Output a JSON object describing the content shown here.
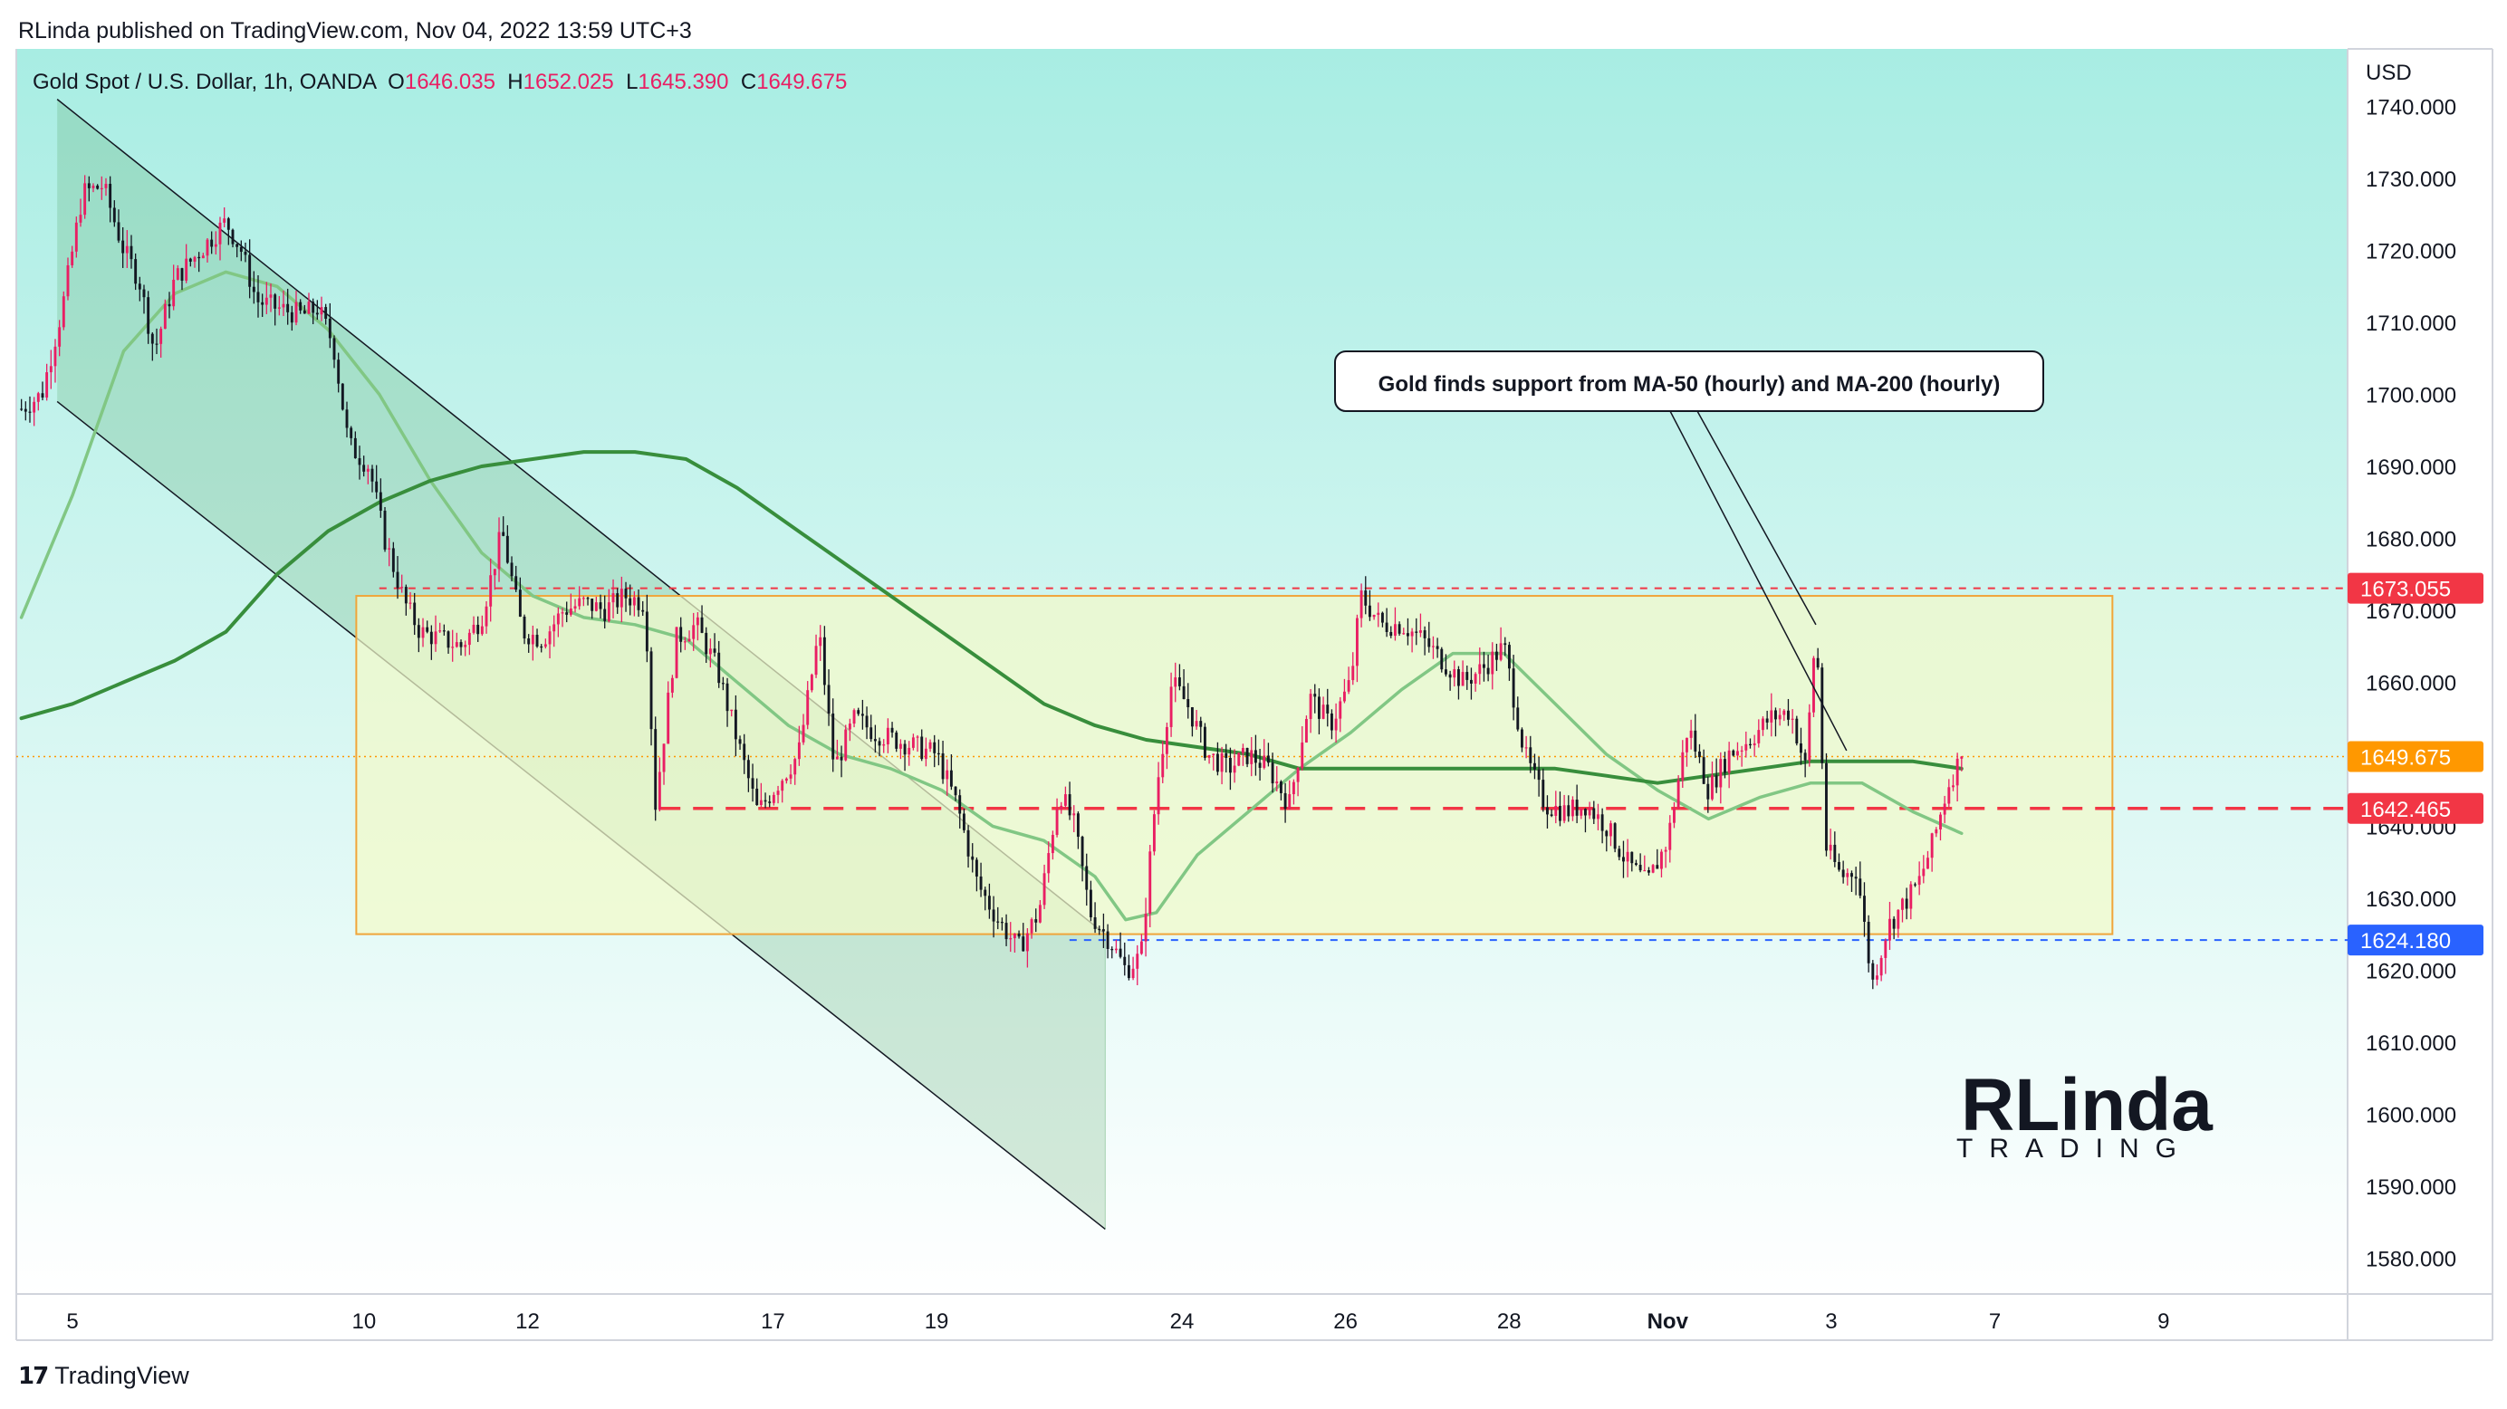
{
  "header": {
    "published": "RLinda published on TradingView.com, Nov 04, 2022 13:59 UTC+3"
  },
  "legend": {
    "symbol": "Gold Spot / U.S. Dollar, 1h, OANDA",
    "o_label": "O",
    "o_value": "1646.035",
    "h_label": "H",
    "h_value": "1652.025",
    "l_label": "L",
    "l_value": "1645.390",
    "c_label": "C",
    "c_value": "1649.675"
  },
  "footer": {
    "brand": "TradingView"
  },
  "watermark": {
    "line1": "RLinda",
    "line2": "TRADING"
  },
  "colors": {
    "bull": "#e91e63",
    "bear": "#131722",
    "ma50": "#81c784",
    "ma200": "#388e3c",
    "red_level": "#f23645",
    "blue_level": "#2962ff",
    "current": "#ff9800",
    "range_box_fill": "#f2f9c9",
    "range_box_border": "#f0a53a",
    "bg_top": "#a8ede3",
    "bg_bottom": "#ffffff"
  },
  "chart_data": {
    "type": "candlestick",
    "title": "Gold Spot / U.S. Dollar, 1h, OANDA",
    "currency_label": "USD",
    "ylim": [
      1575,
      1748
    ],
    "y_ticks": [
      1580,
      1590,
      1600,
      1610,
      1620,
      1630,
      1640,
      1650,
      1660,
      1670,
      1680,
      1690,
      1700,
      1710,
      1720,
      1730,
      1740
    ],
    "y_tick_labels": [
      "1580.000",
      "1590.000",
      "1600.000",
      "1610.000",
      "1620.000",
      "1630.000",
      "1640.000",
      "1650.000",
      "1660.000",
      "1670.000",
      "1680.000",
      "1690.000",
      "1700.000",
      "1710.000",
      "1720.000",
      "1730.000",
      "1740.000"
    ],
    "x_ticks": [
      {
        "label": "5",
        "t": 1.0
      },
      {
        "label": "10",
        "t": 6.7
      },
      {
        "label": "12",
        "t": 9.9
      },
      {
        "label": "17",
        "t": 14.7
      },
      {
        "label": "19",
        "t": 17.9
      },
      {
        "label": "24",
        "t": 22.7
      },
      {
        "label": "26",
        "t": 25.9
      },
      {
        "label": "28",
        "t": 29.1
      },
      {
        "label": "Nov",
        "t": 32.2
      },
      {
        "label": "3",
        "t": 35.4
      },
      {
        "label": "7",
        "t": 38.6
      },
      {
        "label": "9",
        "t": 41.9
      }
    ],
    "price_path": [
      [
        0.0,
        1698
      ],
      [
        0.4,
        1700
      ],
      [
        0.8,
        1712
      ],
      [
        1.2,
        1728
      ],
      [
        1.6,
        1729
      ],
      [
        2.0,
        1720
      ],
      [
        2.3,
        1716
      ],
      [
        2.6,
        1706
      ],
      [
        3.0,
        1716
      ],
      [
        3.5,
        1720
      ],
      [
        4.0,
        1724
      ],
      [
        4.3,
        1720
      ],
      [
        4.6,
        1713
      ],
      [
        5.0,
        1712
      ],
      [
        5.5,
        1711
      ],
      [
        5.8,
        1712
      ],
      [
        6.1,
        1707
      ],
      [
        6.4,
        1693
      ],
      [
        6.8,
        1690
      ],
      [
        7.1,
        1680
      ],
      [
        7.5,
        1671
      ],
      [
        7.8,
        1667
      ],
      [
        8.2,
        1666
      ],
      [
        8.6,
        1665
      ],
      [
        9.0,
        1669
      ],
      [
        9.4,
        1681
      ],
      [
        9.8,
        1667
      ],
      [
        10.2,
        1666
      ],
      [
        10.6,
        1670
      ],
      [
        11.0,
        1671
      ],
      [
        11.4,
        1670
      ],
      [
        11.8,
        1672
      ],
      [
        12.2,
        1671
      ],
      [
        12.4,
        1643
      ],
      [
        12.8,
        1666
      ],
      [
        13.2,
        1668
      ],
      [
        13.6,
        1662
      ],
      [
        14.0,
        1652
      ],
      [
        14.4,
        1642
      ],
      [
        14.8,
        1646
      ],
      [
        15.2,
        1650
      ],
      [
        15.6,
        1667
      ],
      [
        15.9,
        1648
      ],
      [
        16.3,
        1655
      ],
      [
        16.7,
        1653
      ],
      [
        17.1,
        1652
      ],
      [
        17.5,
        1651
      ],
      [
        17.9,
        1650
      ],
      [
        18.3,
        1643
      ],
      [
        18.7,
        1632
      ],
      [
        19.1,
        1627
      ],
      [
        19.5,
        1623
      ],
      [
        19.9,
        1628
      ],
      [
        20.3,
        1645
      ],
      [
        20.6,
        1640
      ],
      [
        20.9,
        1628
      ],
      [
        21.3,
        1624
      ],
      [
        21.6,
        1620
      ],
      [
        21.9,
        1622
      ],
      [
        22.2,
        1645
      ],
      [
        22.5,
        1660
      ],
      [
        22.8,
        1657
      ],
      [
        23.2,
        1650
      ],
      [
        23.6,
        1648
      ],
      [
        24.0,
        1650
      ],
      [
        24.4,
        1648
      ],
      [
        24.8,
        1643
      ],
      [
        25.2,
        1658
      ],
      [
        25.6,
        1654
      ],
      [
        26.0,
        1660
      ],
      [
        26.2,
        1672
      ],
      [
        26.6,
        1668
      ],
      [
        27.0,
        1668
      ],
      [
        27.4,
        1666
      ],
      [
        27.8,
        1663
      ],
      [
        28.2,
        1660
      ],
      [
        28.6,
        1662
      ],
      [
        29.0,
        1665
      ],
      [
        29.4,
        1650
      ],
      [
        29.8,
        1643
      ],
      [
        30.2,
        1642
      ],
      [
        30.6,
        1643
      ],
      [
        31.0,
        1640
      ],
      [
        31.4,
        1635
      ],
      [
        31.8,
        1632
      ],
      [
        32.2,
        1638
      ],
      [
        32.6,
        1654
      ],
      [
        33.0,
        1645
      ],
      [
        33.4,
        1650
      ],
      [
        33.8,
        1652
      ],
      [
        34.2,
        1655
      ],
      [
        34.6,
        1656
      ],
      [
        34.9,
        1648
      ],
      [
        35.1,
        1668
      ],
      [
        35.3,
        1637
      ],
      [
        35.6,
        1633
      ],
      [
        35.9,
        1634
      ],
      [
        36.2,
        1618
      ],
      [
        36.5,
        1626
      ],
      [
        36.8,
        1629
      ],
      [
        37.1,
        1632
      ],
      [
        37.4,
        1638
      ],
      [
        37.7,
        1646
      ],
      [
        37.95,
        1649.675
      ]
    ],
    "series": [
      {
        "name": "MA-50 (hourly)",
        "values": [
          [
            0.0,
            1669
          ],
          [
            1.0,
            1686
          ],
          [
            2.0,
            1706
          ],
          [
            3.0,
            1714
          ],
          [
            4.0,
            1717
          ],
          [
            5.0,
            1715
          ],
          [
            6.0,
            1709
          ],
          [
            7.0,
            1700
          ],
          [
            8.0,
            1688
          ],
          [
            9.0,
            1678
          ],
          [
            10.0,
            1672
          ],
          [
            11.0,
            1669
          ],
          [
            12.0,
            1668
          ],
          [
            13.0,
            1666
          ],
          [
            14.0,
            1660
          ],
          [
            15.0,
            1654
          ],
          [
            16.0,
            1650
          ],
          [
            17.0,
            1648
          ],
          [
            18.0,
            1645
          ],
          [
            19.0,
            1640
          ],
          [
            20.0,
            1638
          ],
          [
            21.0,
            1633
          ],
          [
            21.6,
            1627
          ],
          [
            22.2,
            1628
          ],
          [
            23.0,
            1636
          ],
          [
            24.0,
            1642
          ],
          [
            25.0,
            1648
          ],
          [
            26.0,
            1653
          ],
          [
            27.0,
            1659
          ],
          [
            28.0,
            1664
          ],
          [
            29.0,
            1664
          ],
          [
            30.0,
            1657
          ],
          [
            31.0,
            1650
          ],
          [
            32.0,
            1645
          ],
          [
            33.0,
            1641
          ],
          [
            34.0,
            1644
          ],
          [
            35.0,
            1646
          ],
          [
            36.0,
            1646
          ],
          [
            37.0,
            1642
          ],
          [
            37.95,
            1639
          ]
        ]
      },
      {
        "name": "MA-200 (hourly)",
        "values": [
          [
            0.0,
            1655
          ],
          [
            1.0,
            1657
          ],
          [
            2.0,
            1660
          ],
          [
            3.0,
            1663
          ],
          [
            4.0,
            1667
          ],
          [
            5.0,
            1675
          ],
          [
            6.0,
            1681
          ],
          [
            7.0,
            1685
          ],
          [
            8.0,
            1688
          ],
          [
            9.0,
            1690
          ],
          [
            10.0,
            1691
          ],
          [
            11.0,
            1692
          ],
          [
            12.0,
            1692
          ],
          [
            13.0,
            1691
          ],
          [
            14.0,
            1687
          ],
          [
            15.0,
            1682
          ],
          [
            16.0,
            1677
          ],
          [
            17.0,
            1672
          ],
          [
            18.0,
            1667
          ],
          [
            19.0,
            1662
          ],
          [
            20.0,
            1657
          ],
          [
            21.0,
            1654
          ],
          [
            22.0,
            1652
          ],
          [
            23.0,
            1651
          ],
          [
            24.0,
            1650
          ],
          [
            25.0,
            1648
          ],
          [
            26.0,
            1648
          ],
          [
            27.0,
            1648
          ],
          [
            28.0,
            1648
          ],
          [
            29.0,
            1648
          ],
          [
            30.0,
            1648
          ],
          [
            31.0,
            1647
          ],
          [
            32.0,
            1646
          ],
          [
            33.0,
            1647
          ],
          [
            34.0,
            1648
          ],
          [
            35.0,
            1649
          ],
          [
            36.0,
            1649
          ],
          [
            37.0,
            1649
          ],
          [
            37.95,
            1648
          ]
        ]
      }
    ],
    "price_labels": [
      {
        "value": 1673.055,
        "label": "1673.055",
        "kind": "red_level"
      },
      {
        "value": 1649.675,
        "label": "1649.675",
        "kind": "current"
      },
      {
        "value": 1642.465,
        "label": "1642.465",
        "kind": "red_level"
      },
      {
        "value": 1624.18,
        "label": "1624.180",
        "kind": "blue_level"
      }
    ],
    "range_box": {
      "t_start": 6.55,
      "t_end": 40.9,
      "price_low": 1625,
      "price_high": 1672
    },
    "channel": {
      "upper": [
        [
          0.7,
          1741
        ],
        [
          21.2,
          1625
        ]
      ],
      "lower": [
        [
          0.7,
          1699
        ],
        [
          21.2,
          1584
        ]
      ]
    },
    "annotation": {
      "text": "Gold finds support from MA-50 (hourly) and MA-200 (hourly)",
      "arrows": [
        [
          29.9,
          1651
        ],
        [
          35.1,
          1651
        ]
      ]
    }
  }
}
